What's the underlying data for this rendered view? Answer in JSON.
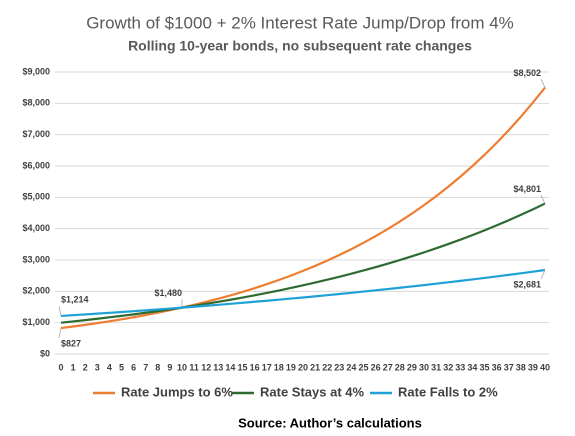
{
  "chart_data": {
    "type": "line",
    "title": "Growth of $1000 + 2% Interest Rate Jump/Drop from 4%",
    "subtitle": "Rolling 10-year bonds, no subsequent rate changes",
    "source": "Source: Author’s calculations",
    "x": [
      0,
      1,
      2,
      3,
      4,
      5,
      6,
      7,
      8,
      9,
      10,
      11,
      12,
      13,
      14,
      15,
      16,
      17,
      18,
      19,
      20,
      21,
      22,
      23,
      24,
      25,
      26,
      27,
      28,
      29,
      30,
      31,
      32,
      33,
      34,
      35,
      36,
      37,
      38,
      39,
      40
    ],
    "xlim": [
      0,
      40
    ],
    "xticks": [
      0,
      1,
      2,
      3,
      4,
      5,
      6,
      7,
      8,
      9,
      10,
      11,
      12,
      13,
      14,
      15,
      16,
      17,
      18,
      19,
      20,
      21,
      22,
      23,
      24,
      25,
      26,
      27,
      28,
      29,
      30,
      31,
      32,
      33,
      34,
      35,
      36,
      37,
      38,
      39,
      40
    ],
    "ylim": [
      0,
      9000
    ],
    "yticks": [
      {
        "value": 0,
        "label": "$0"
      },
      {
        "value": 1000,
        "label": "$1,000"
      },
      {
        "value": 2000,
        "label": "$2,000"
      },
      {
        "value": 3000,
        "label": "$3,000"
      },
      {
        "value": 4000,
        "label": "$4,000"
      },
      {
        "value": 5000,
        "label": "$5,000"
      },
      {
        "value": 6000,
        "label": "$6,000"
      },
      {
        "value": 7000,
        "label": "$7,000"
      },
      {
        "value": 8000,
        "label": "$8,000"
      },
      {
        "value": 9000,
        "label": "$9,000"
      }
    ],
    "grid": true,
    "legend": "bottom",
    "series": [
      {
        "name": "Rate Jumps to 6%",
        "color": "#ed7d31",
        "values": [
          827,
          877,
          929,
          985,
          1044,
          1107,
          1173,
          1244,
          1318,
          1397,
          1481,
          1570,
          1664,
          1764,
          1870,
          1982,
          2101,
          2227,
          2361,
          2502,
          2652,
          2811,
          2980,
          3159,
          3348,
          3549,
          3762,
          3988,
          4227,
          4481,
          4750,
          5035,
          5337,
          5657,
          5997,
          6356,
          6738,
          7142,
          7571,
          8025,
          8502
        ],
        "value_labels": [
          "$827",
          null,
          null,
          null,
          null,
          null,
          null,
          null,
          null,
          null,
          null,
          null,
          null,
          null,
          null,
          null,
          null,
          null,
          null,
          null,
          null,
          null,
          null,
          null,
          null,
          null,
          null,
          null,
          null,
          null,
          null,
          null,
          null,
          null,
          null,
          null,
          null,
          null,
          null,
          null,
          "$8,502"
        ]
      },
      {
        "name": "Rate Stays at 4%",
        "color": "#2e6b30",
        "values": [
          1000,
          1040,
          1082,
          1125,
          1170,
          1217,
          1265,
          1316,
          1369,
          1423,
          1480,
          1539,
          1601,
          1665,
          1732,
          1801,
          1873,
          1948,
          2026,
          2107,
          2191,
          2279,
          2370,
          2465,
          2563,
          2666,
          2772,
          2883,
          2999,
          3119,
          3243,
          3373,
          3508,
          3648,
          3794,
          3946,
          4104,
          4268,
          4439,
          4616,
          4801
        ],
        "value_labels": [
          null,
          null,
          null,
          null,
          null,
          null,
          null,
          null,
          null,
          null,
          "$1,480",
          null,
          null,
          null,
          null,
          null,
          null,
          null,
          null,
          null,
          null,
          null,
          null,
          null,
          null,
          null,
          null,
          null,
          null,
          null,
          null,
          null,
          null,
          null,
          null,
          null,
          null,
          null,
          null,
          null,
          "$4,801"
        ]
      },
      {
        "name": "Rate Falls to 2%",
        "color": "#1ea1d6",
        "values": [
          1214,
          1238,
          1263,
          1288,
          1314,
          1340,
          1367,
          1395,
          1422,
          1451,
          1480,
          1509,
          1540,
          1570,
          1602,
          1634,
          1667,
          1700,
          1734,
          1769,
          1804,
          1840,
          1877,
          1914,
          1953,
          1992,
          2032,
          2072,
          2114,
          2156,
          2199,
          2243,
          2288,
          2334,
          2380,
          2428,
          2476,
          2526,
          2576,
          2628,
          2681
        ],
        "value_labels": [
          "$1,214",
          null,
          null,
          null,
          null,
          null,
          null,
          null,
          null,
          null,
          null,
          null,
          null,
          null,
          null,
          null,
          null,
          null,
          null,
          null,
          null,
          null,
          null,
          null,
          null,
          null,
          null,
          null,
          null,
          null,
          null,
          null,
          null,
          null,
          null,
          null,
          null,
          null,
          null,
          null,
          "$2,681"
        ]
      }
    ]
  }
}
